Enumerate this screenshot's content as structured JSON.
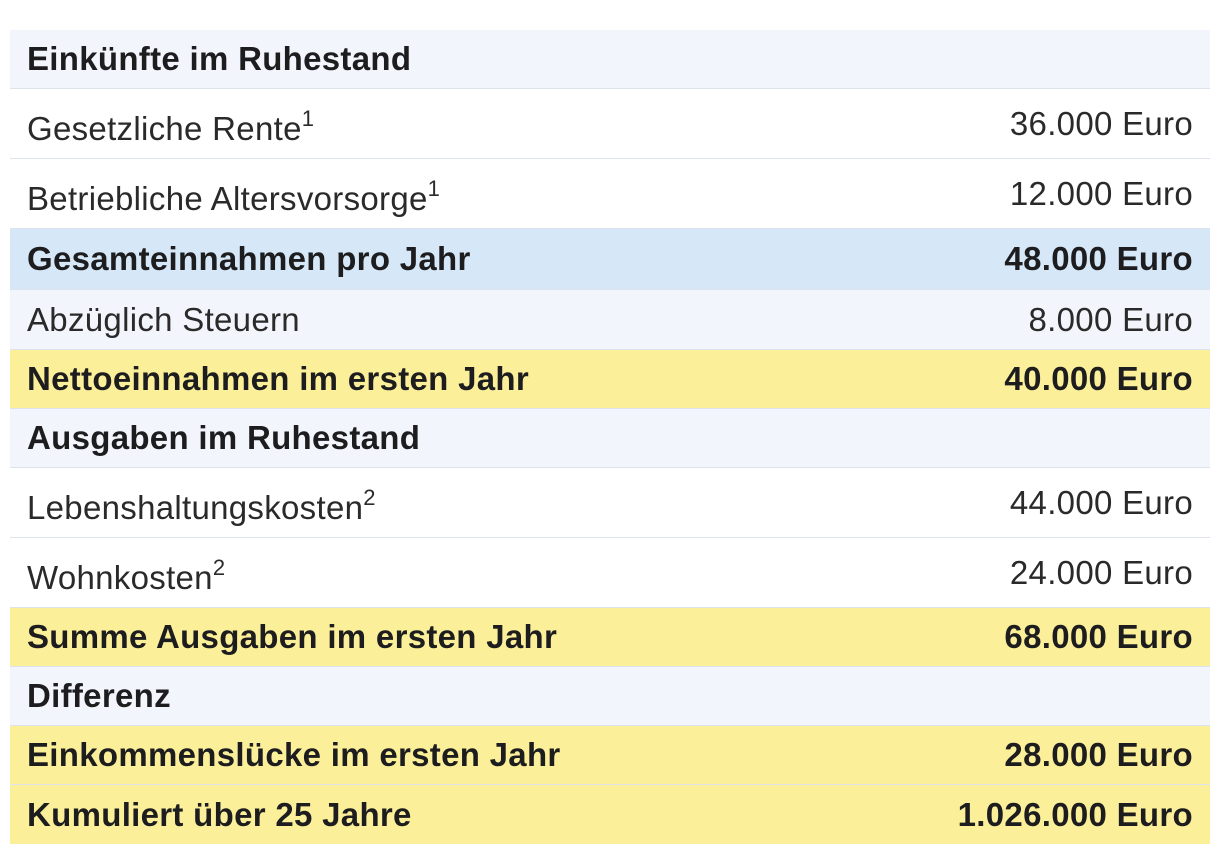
{
  "colors": {
    "section_bg": "#f2f5fb",
    "row_bg": "#ffffff",
    "subtotal_bg": "#d6e7f7",
    "highlight_bg": "#fbf099",
    "border": "#dde3ec"
  },
  "income": {
    "heading": "Einkünfte im Ruhestand",
    "pension_label": "Gesetzliche Rente",
    "pension_note": "1",
    "pension_value": "36.000 Euro",
    "company_label": "Betriebliche Altersvorsorge",
    "company_note": "1",
    "company_value": "12.000 Euro",
    "total_label": "Gesamteinnahmen pro Jahr",
    "total_value": "48.000 Euro",
    "tax_label": "Abzüglich Steuern",
    "tax_value": "8.000 Euro",
    "net_label": "Nettoeinnahmen im ersten Jahr",
    "net_value": "40.000 Euro"
  },
  "expenses": {
    "heading": "Ausgaben im Ruhestand",
    "living_label": "Lebenshaltungskosten",
    "living_note": "2",
    "living_value": "44.000 Euro",
    "housing_label": "Wohnkosten",
    "housing_note": "2",
    "housing_value": "24.000 Euro",
    "total_label": "Summe Ausgaben im ersten Jahr",
    "total_value": "68.000 Euro"
  },
  "difference": {
    "heading": "Differenz",
    "gap_label": "Einkommenslücke im ersten Jahr",
    "gap_value": "28.000 Euro",
    "cumulative_label": "Kumuliert über 25 Jahre",
    "cumulative_value": "1.026.000 Euro"
  }
}
